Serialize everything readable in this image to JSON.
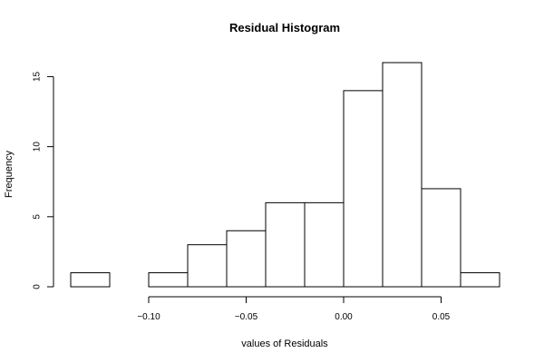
{
  "chart_data": {
    "type": "bar",
    "title": "Residual Histogram",
    "xlabel": "values of Residuals",
    "ylabel": "Frequency",
    "bins": [
      {
        "start": -0.14,
        "end": -0.12,
        "count": 1
      },
      {
        "start": -0.12,
        "end": -0.1,
        "count": 0
      },
      {
        "start": -0.1,
        "end": -0.08,
        "count": 1
      },
      {
        "start": -0.08,
        "end": -0.06,
        "count": 3
      },
      {
        "start": -0.06,
        "end": -0.04,
        "count": 4
      },
      {
        "start": -0.04,
        "end": -0.02,
        "count": 6
      },
      {
        "start": -0.02,
        "end": 0.0,
        "count": 6
      },
      {
        "start": 0.0,
        "end": 0.02,
        "count": 14
      },
      {
        "start": 0.02,
        "end": 0.04,
        "count": 16
      },
      {
        "start": 0.04,
        "end": 0.06,
        "count": 7
      },
      {
        "start": 0.06,
        "end": 0.08,
        "count": 1
      }
    ],
    "xlim": [
      -0.14,
      0.08
    ],
    "ylim": [
      0,
      16
    ],
    "x_ticks": [
      {
        "value": -0.1,
        "label": "−0.10"
      },
      {
        "value": -0.05,
        "label": "−0.05"
      },
      {
        "value": 0.0,
        "label": "0.00"
      },
      {
        "value": 0.05,
        "label": "0.05"
      }
    ],
    "y_ticks": [
      {
        "value": 0,
        "label": "0"
      },
      {
        "value": 5,
        "label": "5"
      },
      {
        "value": 10,
        "label": "10"
      },
      {
        "value": 15,
        "label": "15"
      }
    ],
    "grid": false,
    "legend": "none"
  }
}
